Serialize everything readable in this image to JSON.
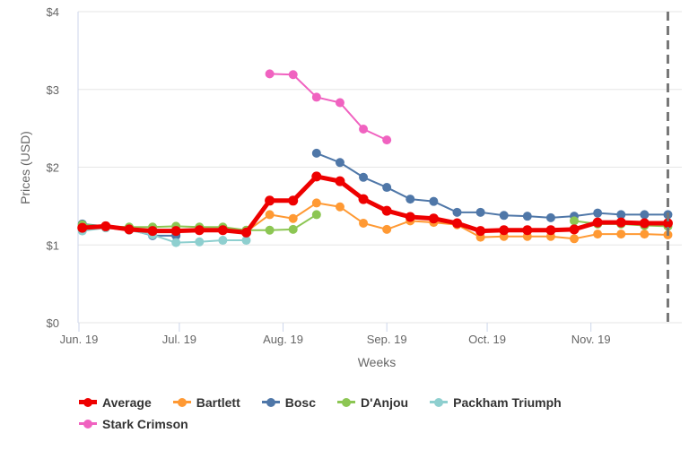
{
  "chart_data": {
    "type": "line",
    "title": "",
    "xlabel": "Weeks",
    "ylabel": "Prices (USD)",
    "ylim": [
      0,
      4
    ],
    "yticks": [
      "$0",
      "$1",
      "$2",
      "$3",
      "$4"
    ],
    "xtick_labels": [
      {
        "label": "Jun. 19",
        "date": "2019-06-01"
      },
      {
        "label": "Jul. 19",
        "date": "2019-07-01"
      },
      {
        "label": "Aug. 19",
        "date": "2019-08-01"
      },
      {
        "label": "Sep. 19",
        "date": "2019-09-01"
      },
      {
        "label": "Oct. 19",
        "date": "2019-10-01"
      },
      {
        "label": "Nov. 19",
        "date": "2019-11-01"
      }
    ],
    "x": [
      "2019-06-02",
      "2019-06-09",
      "2019-06-16",
      "2019-06-23",
      "2019-06-30",
      "2019-07-07",
      "2019-07-14",
      "2019-07-21",
      "2019-07-28",
      "2019-08-04",
      "2019-08-11",
      "2019-08-18",
      "2019-08-25",
      "2019-09-01",
      "2019-09-08",
      "2019-09-15",
      "2019-09-22",
      "2019-09-29",
      "2019-10-06",
      "2019-10-13",
      "2019-10-20",
      "2019-10-27",
      "2019-11-03",
      "2019-11-10",
      "2019-11-17",
      "2019-11-24"
    ],
    "plot_line_date": "2019-11-24",
    "grid": true,
    "legend_position": "bottom",
    "series": [
      {
        "name": "Average",
        "color": "#ee0000",
        "width": 5,
        "values": [
          1.22,
          1.24,
          1.2,
          1.18,
          1.18,
          1.19,
          1.19,
          1.16,
          1.57,
          1.57,
          1.88,
          1.82,
          1.59,
          1.44,
          1.36,
          1.34,
          1.28,
          1.18,
          1.19,
          1.19,
          1.19,
          1.2,
          1.29,
          1.29,
          1.28,
          1.28
        ]
      },
      {
        "name": "Bartlett",
        "color": "#ff9933",
        "width": 2,
        "values": [
          1.24,
          1.23,
          1.21,
          1.19,
          1.19,
          1.19,
          1.19,
          1.17,
          1.39,
          1.34,
          1.54,
          1.49,
          1.28,
          1.2,
          1.31,
          1.29,
          1.26,
          1.1,
          1.11,
          1.11,
          1.11,
          1.08,
          1.14,
          1.14,
          1.14,
          1.13
        ]
      },
      {
        "name": "Bosc",
        "color": "#4f77a8",
        "width": 2,
        "values": [
          1.27,
          1.24,
          1.2,
          1.12,
          1.12,
          null,
          null,
          null,
          null,
          null,
          2.18,
          2.06,
          1.87,
          1.74,
          1.59,
          1.56,
          1.42,
          1.42,
          1.38,
          1.37,
          1.35,
          1.37,
          1.41,
          1.39,
          1.39,
          1.39
        ]
      },
      {
        "name": "D'Anjou",
        "color": "#8cc653",
        "width": 2,
        "values": [
          1.26,
          1.24,
          1.23,
          1.23,
          1.24,
          1.23,
          1.23,
          1.19,
          1.19,
          1.2,
          1.39,
          null,
          null,
          null,
          null,
          null,
          null,
          null,
          null,
          null,
          null,
          1.31,
          1.27,
          1.27,
          1.25,
          1.24
        ]
      },
      {
        "name": "Packham Triumph",
        "color": "#8ecfcf",
        "width": 2,
        "values": [
          1.18,
          1.22,
          1.19,
          1.13,
          1.03,
          1.04,
          1.06,
          1.06,
          null,
          null,
          null,
          null,
          null,
          null,
          null,
          null,
          null,
          null,
          null,
          null,
          null,
          null,
          null,
          null,
          null,
          null
        ]
      },
      {
        "name": "Stark Crimson",
        "color": "#f062c0",
        "width": 2,
        "values": [
          null,
          null,
          null,
          null,
          null,
          null,
          null,
          null,
          3.2,
          3.19,
          2.9,
          2.83,
          2.49,
          2.35,
          null,
          null,
          null,
          null,
          null,
          null,
          null,
          null,
          null,
          null,
          null,
          null
        ]
      }
    ]
  }
}
